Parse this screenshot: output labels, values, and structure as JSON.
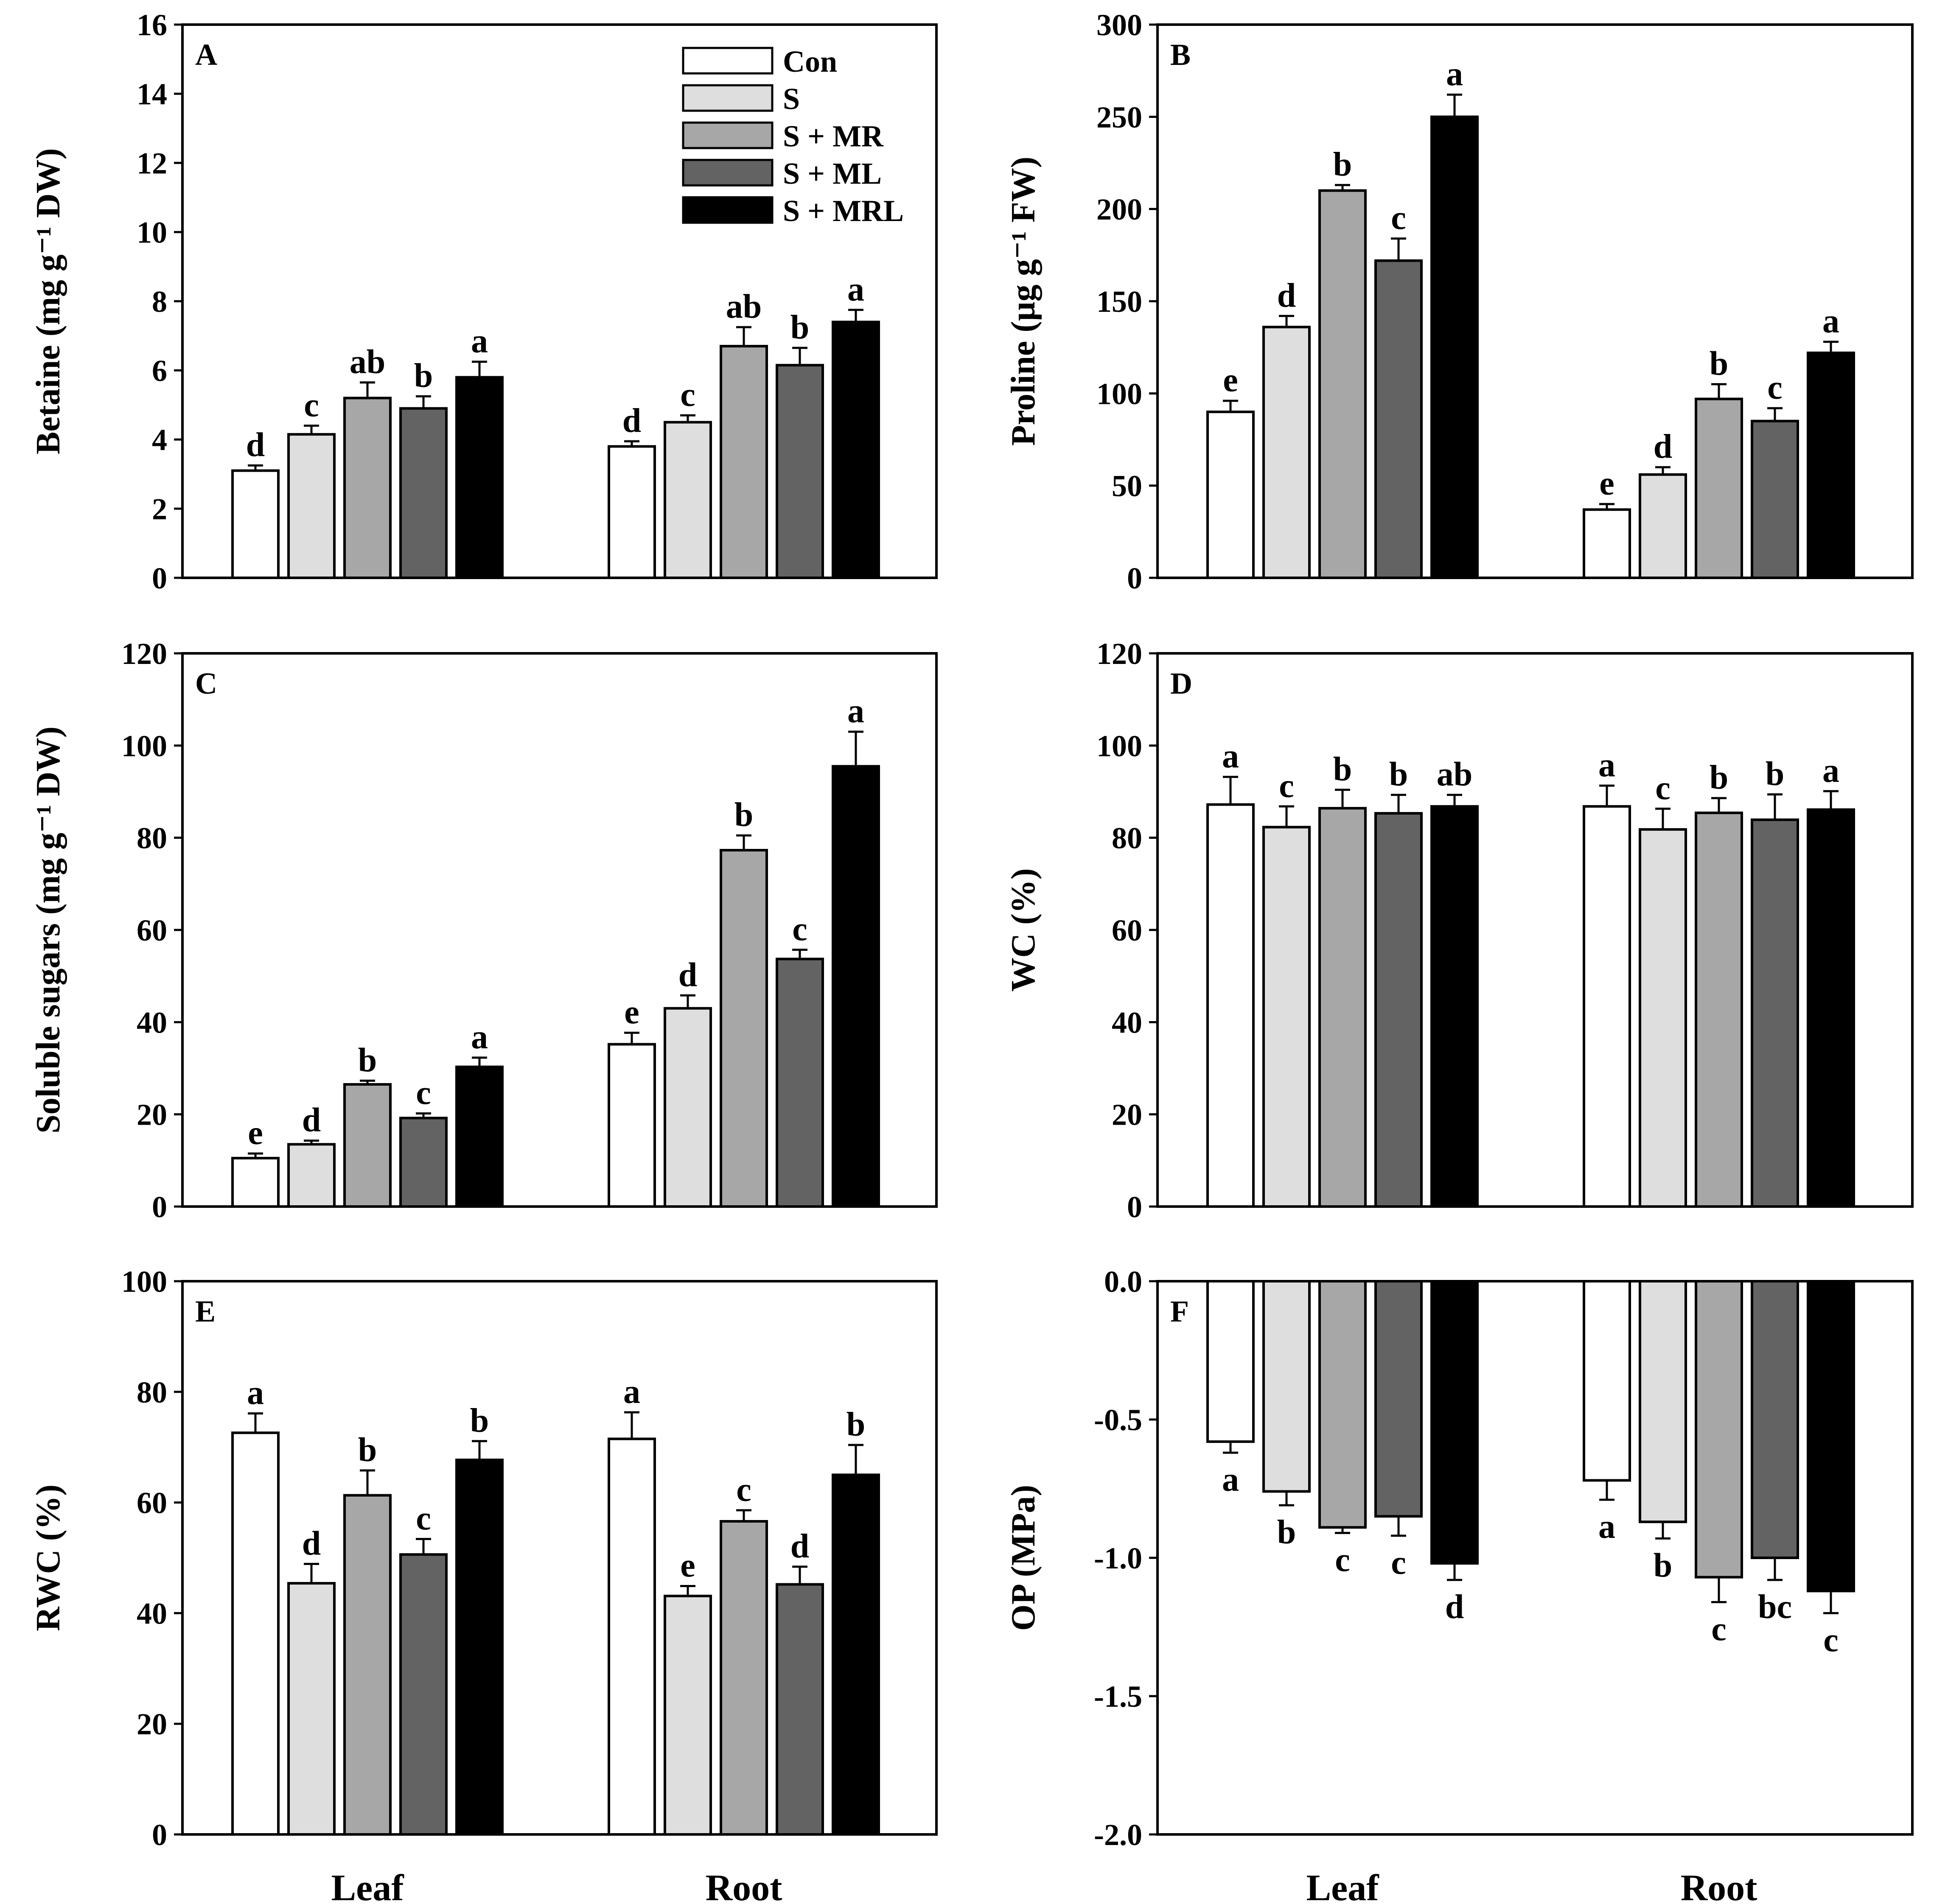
{
  "chart_data": [
    {
      "panel": "A",
      "type": "bar",
      "ylabel": "Betaine  (mg g⁻¹ DW)",
      "ylim": [
        0,
        16
      ],
      "yticks": [
        "0",
        "2",
        "4",
        "6",
        "8",
        "10",
        "12",
        "14",
        "16"
      ],
      "categories": [
        "Leaf",
        "Root"
      ],
      "show_xlabels": false,
      "legend": true,
      "series": [
        {
          "name": "Con",
          "values": [
            3.1,
            3.8
          ],
          "errors": [
            0.15,
            0.15
          ],
          "labels": [
            "d",
            "d"
          ]
        },
        {
          "name": "S",
          "values": [
            4.15,
            4.5
          ],
          "errors": [
            0.25,
            0.2
          ],
          "labels": [
            "c",
            "c"
          ]
        },
        {
          "name": "S + MR",
          "values": [
            5.2,
            6.7
          ],
          "errors": [
            0.45,
            0.55
          ],
          "labels": [
            "ab",
            "ab"
          ]
        },
        {
          "name": "S + ML",
          "values": [
            4.9,
            6.15
          ],
          "errors": [
            0.35,
            0.5
          ],
          "labels": [
            "b",
            "b"
          ]
        },
        {
          "name": "S + MRL",
          "values": [
            5.8,
            7.4
          ],
          "errors": [
            0.45,
            0.35
          ],
          "labels": [
            "a",
            "a"
          ]
        }
      ]
    },
    {
      "panel": "B",
      "type": "bar",
      "ylabel": "Proline (µg g⁻¹ FW)",
      "ylim": [
        0,
        300
      ],
      "yticks": [
        "0",
        "50",
        "100",
        "150",
        "200",
        "250",
        "300"
      ],
      "categories": [
        "Leaf",
        "Root"
      ],
      "show_xlabels": false,
      "legend": false,
      "series": [
        {
          "name": "Con",
          "values": [
            90,
            37
          ],
          "errors": [
            6,
            3
          ],
          "labels": [
            "e",
            "e"
          ]
        },
        {
          "name": "S",
          "values": [
            136,
            56
          ],
          "errors": [
            6,
            4
          ],
          "labels": [
            "d",
            "d"
          ]
        },
        {
          "name": "S + MR",
          "values": [
            210,
            97
          ],
          "errors": [
            3,
            8
          ],
          "labels": [
            "b",
            "b"
          ]
        },
        {
          "name": "S + ML",
          "values": [
            172,
            85
          ],
          "errors": [
            12,
            7
          ],
          "labels": [
            "c",
            "c"
          ]
        },
        {
          "name": "S + MRL",
          "values": [
            250,
            122
          ],
          "errors": [
            12,
            6
          ],
          "labels": [
            "a",
            "a"
          ]
        }
      ]
    },
    {
      "panel": "C",
      "type": "bar",
      "ylabel": "Soluble sugars (mg g⁻¹ DW)",
      "ylim": [
        0,
        120
      ],
      "yticks": [
        "0",
        "20",
        "40",
        "60",
        "80",
        "100",
        "120"
      ],
      "categories": [
        "Leaf",
        "Root"
      ],
      "show_xlabels": false,
      "legend": false,
      "series": [
        {
          "name": "Con",
          "values": [
            10.5,
            35.2
          ],
          "errors": [
            1.0,
            2.5
          ],
          "labels": [
            "e",
            "e"
          ]
        },
        {
          "name": "S",
          "values": [
            13.5,
            43
          ],
          "errors": [
            0.8,
            2.8
          ],
          "labels": [
            "d",
            "d"
          ]
        },
        {
          "name": "S + MR",
          "values": [
            26.5,
            77.3
          ],
          "errors": [
            0.8,
            3.2
          ],
          "labels": [
            "b",
            "b"
          ]
        },
        {
          "name": "S + ML",
          "values": [
            19.2,
            53.7
          ],
          "errors": [
            1.0,
            2.0
          ],
          "labels": [
            "c",
            "c"
          ]
        },
        {
          "name": "S + MRL",
          "values": [
            30.3,
            95.5
          ],
          "errors": [
            2.0,
            7.5
          ],
          "labels": [
            "a",
            "a"
          ]
        }
      ]
    },
    {
      "panel": "D",
      "type": "bar",
      "ylabel": "WC (%)",
      "ylim": [
        0,
        120
      ],
      "yticks": [
        "0",
        "20",
        "40",
        "60",
        "80",
        "100",
        "120"
      ],
      "categories": [
        "Leaf",
        "Root"
      ],
      "show_xlabels": false,
      "legend": false,
      "series": [
        {
          "name": "Con",
          "values": [
            87.2,
            86.8
          ],
          "errors": [
            6.0,
            4.5
          ],
          "labels": [
            "a",
            "a"
          ]
        },
        {
          "name": "S",
          "values": [
            82.3,
            81.8
          ],
          "errors": [
            4.5,
            4.5
          ],
          "labels": [
            "c",
            "c"
          ]
        },
        {
          "name": "S + MR",
          "values": [
            86.4,
            85.4
          ],
          "errors": [
            4.0,
            3.2
          ],
          "labels": [
            "b",
            "b"
          ]
        },
        {
          "name": "S + ML",
          "values": [
            85.3,
            83.9
          ],
          "errors": [
            4.0,
            5.5
          ],
          "labels": [
            "b",
            "b"
          ]
        },
        {
          "name": "S + MRL",
          "values": [
            86.8,
            86.1
          ],
          "errors": [
            2.5,
            4.0
          ],
          "labels": [
            "ab",
            "a"
          ]
        }
      ]
    },
    {
      "panel": "E",
      "type": "bar",
      "ylabel": "RWC (%)",
      "ylim": [
        0,
        100
      ],
      "yticks": [
        "0",
        "20",
        "40",
        "60",
        "80",
        "100"
      ],
      "categories": [
        "Leaf",
        "Root"
      ],
      "show_xlabels": true,
      "legend": false,
      "series": [
        {
          "name": "Con",
          "values": [
            72.6,
            71.5
          ],
          "errors": [
            3.5,
            4.8
          ],
          "labels": [
            "a",
            "a"
          ]
        },
        {
          "name": "S",
          "values": [
            45.4,
            43.1
          ],
          "errors": [
            3.5,
            1.8
          ],
          "labels": [
            "d",
            "e"
          ]
        },
        {
          "name": "S + MR",
          "values": [
            61.3,
            56.6
          ],
          "errors": [
            4.5,
            2.0
          ],
          "labels": [
            "b",
            "c"
          ]
        },
        {
          "name": "S + ML",
          "values": [
            50.6,
            45.2
          ],
          "errors": [
            2.8,
            3.2
          ],
          "labels": [
            "c",
            "d"
          ]
        },
        {
          "name": "S + MRL",
          "values": [
            67.7,
            65.0
          ],
          "errors": [
            3.4,
            5.4
          ],
          "labels": [
            "b",
            "b"
          ]
        }
      ]
    },
    {
      "panel": "F",
      "type": "bar",
      "ylabel": "OP (MPa)",
      "ylim": [
        -2.0,
        0.0
      ],
      "yticks": [
        "0.0",
        "-0.5",
        "-1.0",
        "-1.5",
        "-2.0"
      ],
      "categories": [
        "Leaf",
        "Root"
      ],
      "show_xlabels": true,
      "legend": false,
      "series": [
        {
          "name": "Con",
          "values": [
            -0.58,
            -0.72
          ],
          "errors": [
            0.04,
            0.07
          ],
          "labels": [
            "a",
            "a"
          ]
        },
        {
          "name": "S",
          "values": [
            -0.76,
            -0.87
          ],
          "errors": [
            0.05,
            0.06
          ],
          "labels": [
            "b",
            "b"
          ]
        },
        {
          "name": "S + MR",
          "values": [
            -0.89,
            -1.07
          ],
          "errors": [
            0.02,
            0.09
          ],
          "labels": [
            "c",
            "c"
          ]
        },
        {
          "name": "S + ML",
          "values": [
            -0.85,
            -1.0
          ],
          "errors": [
            0.07,
            0.08
          ],
          "labels": [
            "c",
            "bc"
          ]
        },
        {
          "name": "S + MRL",
          "values": [
            -1.02,
            -1.12
          ],
          "errors": [
            0.06,
            0.08
          ],
          "labels": [
            "d",
            "c"
          ]
        }
      ]
    }
  ],
  "colors": {
    "Con": "#ffffff",
    "S": "#dedede",
    "S + MR": "#a7a7a7",
    "S + ML": "#636363",
    "S + MRL": "#000000",
    "axis": "#000000"
  }
}
